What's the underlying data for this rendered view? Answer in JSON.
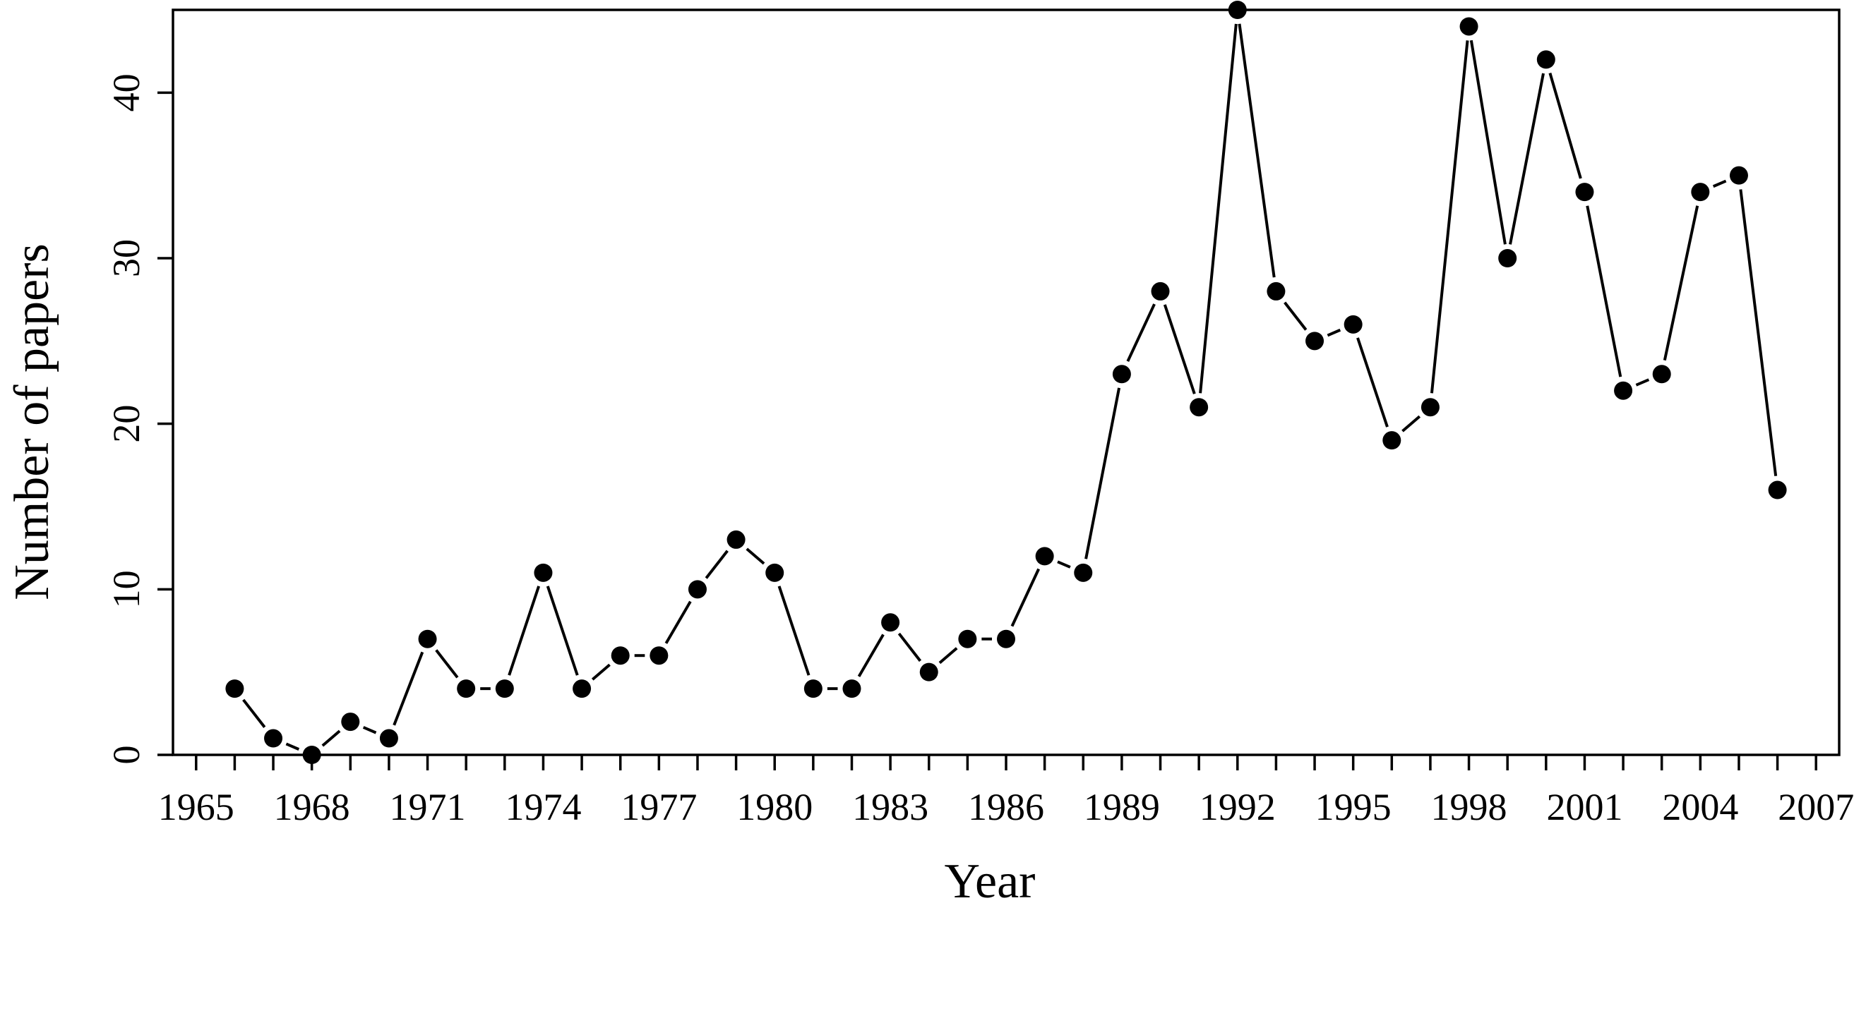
{
  "chart_data": {
    "type": "line",
    "title": "",
    "xlabel": "Year",
    "ylabel": "Number of papers",
    "xlim": [
      1964.4,
      2007.6
    ],
    "ylim": [
      0,
      45
    ],
    "x_ticks": [
      1965,
      1968,
      1971,
      1974,
      1977,
      1980,
      1983,
      1986,
      1989,
      1992,
      1995,
      1998,
      2001,
      2004,
      2007
    ],
    "x_tick_labels": [
      "1965",
      "1968",
      "1971",
      "1974",
      "1977",
      "1980",
      "1983",
      "1986",
      "1989",
      "1992",
      "1995",
      "1998",
      "2001",
      "2004",
      "2007"
    ],
    "y_ticks": [
      0,
      10,
      20,
      30,
      40
    ],
    "y_tick_labels": [
      "0",
      "10",
      "20",
      "30",
      "40"
    ],
    "grid": false,
    "legend": "none",
    "line_color": "#000000",
    "marker": "filled-circle",
    "series": [
      {
        "x": [
          1966,
          1967,
          1968,
          1969,
          1970,
          1971,
          1972,
          1973,
          1974,
          1975,
          1976,
          1977,
          1978,
          1979,
          1980,
          1981,
          1982,
          1983,
          1984,
          1985,
          1986,
          1987,
          1988,
          1989,
          1990,
          1991,
          1992,
          1993,
          1994,
          1995,
          1996,
          1997,
          1998,
          1999,
          2000,
          2001,
          2002,
          2003,
          2004,
          2005,
          2006
        ],
        "values": [
          4,
          1,
          0,
          2,
          1,
          7,
          4,
          4,
          11,
          4,
          6,
          6,
          10,
          13,
          11,
          4,
          4,
          8,
          5,
          7,
          7,
          12,
          11,
          23,
          28,
          21,
          45,
          28,
          25,
          26,
          19,
          21,
          44,
          30,
          42,
          34,
          22,
          23,
          34,
          35,
          16
        ]
      }
    ]
  }
}
